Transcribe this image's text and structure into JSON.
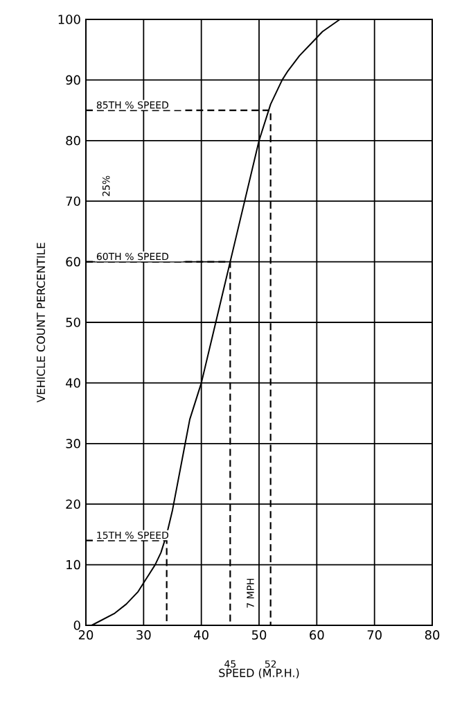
{
  "chart_data": {
    "type": "line",
    "xlabel": "SPEED (M.P.H.)",
    "ylabel": "VEHICLE COUNT PERCENTILE",
    "xlim": [
      20,
      80
    ],
    "ylim": [
      0,
      100
    ],
    "xticks": [
      20,
      30,
      40,
      50,
      60,
      70,
      80
    ],
    "yticks": [
      0,
      10,
      20,
      30,
      40,
      50,
      60,
      70,
      80,
      90,
      100
    ],
    "grid": true,
    "series": [
      {
        "color": "#000000",
        "x": [
          21,
          23,
          25,
          27,
          29,
          30,
          31,
          32,
          33,
          34,
          35,
          36,
          37,
          38,
          40,
          42,
          44,
          46,
          48,
          50,
          51,
          52,
          53,
          54,
          55,
          57,
          59,
          61,
          64
        ],
        "values": [
          0,
          1,
          2,
          3.5,
          5.5,
          7,
          8.5,
          10,
          12,
          15,
          19,
          24,
          29,
          34,
          40,
          48,
          56,
          64,
          72,
          80,
          83,
          86,
          88,
          90,
          91.5,
          94,
          96,
          98,
          100
        ]
      },
      {
        "color": "#000000",
        "line_style": "dashed",
        "x": [
          20,
          34,
          34
        ],
        "values": [
          14,
          14,
          0
        ]
      },
      {
        "color": "#000000",
        "line_style": "dashed",
        "x": [
          20,
          45,
          45
        ],
        "values": [
          60,
          60,
          0
        ]
      },
      {
        "color": "#000000",
        "line_style": "dashed",
        "x": [
          20,
          52,
          52
        ],
        "values": [
          85,
          85,
          0
        ]
      }
    ],
    "annotations": [
      "85TH % SPEED",
      "60TH % SPEED",
      "15TH % SPEED",
      "25%",
      "7 MPH",
      "45",
      "52"
    ]
  }
}
